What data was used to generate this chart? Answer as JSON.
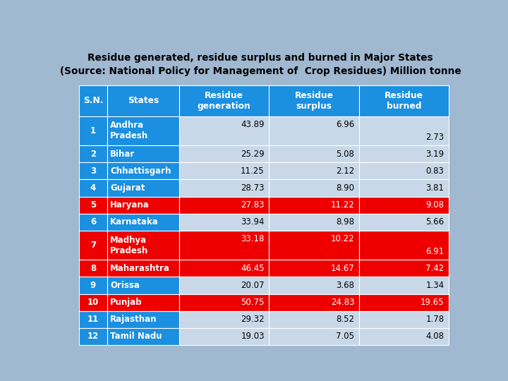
{
  "title_line1": "Residue generated, residue surplus and burned in Major States",
  "title_line2": "(Source: National Policy for Management of  Crop Residues) Million tonne",
  "col_headers": [
    "S.N.",
    "States",
    "Residue\ngeneration",
    "Residue\nsurplus",
    "Residue\nburned"
  ],
  "rows": [
    {
      "sn": "1",
      "state": "Andhra\nPradesh",
      "gen": "43.89",
      "sur": "6.96",
      "bur": "2.73",
      "two_line": true,
      "red": false
    },
    {
      "sn": "2",
      "state": "Bihar",
      "gen": "25.29",
      "sur": "5.08",
      "bur": "3.19",
      "two_line": false,
      "red": false
    },
    {
      "sn": "3",
      "state": "Chhattisgarh",
      "gen": "11.25",
      "sur": "2.12",
      "bur": "0.83",
      "two_line": false,
      "red": false
    },
    {
      "sn": "4",
      "state": "Gujarat",
      "gen": "28.73",
      "sur": "8.90",
      "bur": "3.81",
      "two_line": false,
      "red": false
    },
    {
      "sn": "5",
      "state": "Haryana",
      "gen": "27.83",
      "sur": "11.22",
      "bur": "9.08",
      "two_line": false,
      "red": true
    },
    {
      "sn": "6",
      "state": "Karnataka",
      "gen": "33.94",
      "sur": "8.98",
      "bur": "5.66",
      "two_line": false,
      "red": false
    },
    {
      "sn": "7",
      "state": "Madhya\nPradesh",
      "gen": "33.18",
      "sur": "10.22",
      "bur": "6.91",
      "two_line": true,
      "red": true
    },
    {
      "sn": "8",
      "state": "Maharashtra",
      "gen": "46.45",
      "sur": "14.67",
      "bur": "7.42",
      "two_line": false,
      "red": true
    },
    {
      "sn": "9",
      "state": "Orissa",
      "gen": "20.07",
      "sur": "3.68",
      "bur": "1.34",
      "two_line": false,
      "red": false
    },
    {
      "sn": "10",
      "state": "Punjab",
      "gen": "50.75",
      "sur": "24.83",
      "bur": "19.65",
      "two_line": false,
      "red": true
    },
    {
      "sn": "11",
      "state": "Rajasthan",
      "gen": "29.32",
      "sur": "8.52",
      "bur": "1.78",
      "two_line": false,
      "red": false
    },
    {
      "sn": "12",
      "state": "Tamil Nadu",
      "gen": "19.03",
      "sur": "7.05",
      "bur": "4.08",
      "two_line": false,
      "red": false
    }
  ],
  "header_bg": "#1B8FE0",
  "header_text": "#FFFFFF",
  "blue_sn_bg": "#1B8FE0",
  "blue_sn_text": "#FFFFFF",
  "blue_state_bg": "#1B8FE0",
  "blue_state_text": "#FFFFFF",
  "blue_data_bg": "#C8D8E8",
  "blue_data_text": "#000000",
  "red_bg": "#EE0000",
  "red_text": "#FFFFFF",
  "title_color": "#000000",
  "bg_color": "#A0B8D0"
}
